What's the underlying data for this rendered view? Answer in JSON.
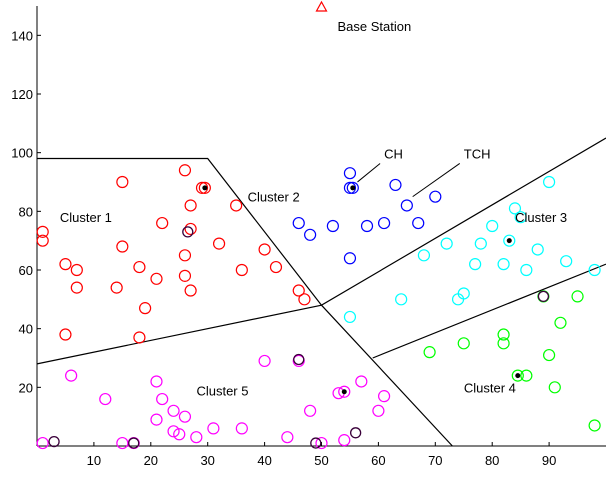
{
  "chart_data": {
    "type": "scatter",
    "title": "",
    "xlabel": "",
    "ylabel": "",
    "xlim": [
      0,
      100
    ],
    "ylim": [
      0,
      150
    ],
    "x_ticks": [
      10,
      20,
      30,
      40,
      50,
      60,
      70,
      80,
      90
    ],
    "y_ticks": [
      20,
      40,
      60,
      80,
      100,
      120,
      140
    ],
    "grid": false,
    "base_station": {
      "x": 50,
      "y": 150,
      "color": "#ff0000",
      "label": "Base Station"
    },
    "annotations": [
      {
        "text": "CH",
        "from": [
          61,
          97
        ],
        "to": [
          55.8,
          89
        ]
      },
      {
        "text": "TCH",
        "from": [
          75,
          97
        ],
        "to": [
          65.5,
          84
        ]
      }
    ],
    "region_labels": [
      {
        "text": "Cluster 1",
        "x": 10,
        "y": 78
      },
      {
        "text": "Cluster 2",
        "x": 43,
        "y": 85
      },
      {
        "text": "Cluster 3",
        "x": 90,
        "y": 78
      },
      {
        "text": "Cluster 4",
        "x": 81,
        "y": 20
      },
      {
        "text": "Cluster 5",
        "x": 34,
        "y": 19
      }
    ],
    "boundaries": [
      [
        [
          0,
          98
        ],
        [
          30,
          98
        ],
        [
          50,
          48
        ],
        [
          73,
          0
        ]
      ],
      [
        [
          0,
          28
        ],
        [
          50,
          48
        ],
        [
          100,
          105
        ]
      ],
      [
        [
          59,
          30
        ],
        [
          100,
          62
        ]
      ]
    ],
    "series": [
      {
        "color": "#ff0000",
        "points": [
          [
            1,
            73
          ],
          [
            1,
            70
          ],
          [
            5,
            62
          ],
          [
            7,
            60
          ],
          [
            7,
            54
          ],
          [
            5,
            38
          ],
          [
            15,
            90
          ],
          [
            15,
            68
          ],
          [
            14,
            54
          ],
          [
            18,
            61
          ],
          [
            21,
            57
          ],
          [
            19,
            47
          ],
          [
            18,
            37
          ],
          [
            22,
            76
          ],
          [
            26,
            94
          ],
          [
            27,
            82
          ],
          [
            29,
            88
          ],
          [
            27,
            74
          ],
          [
            26,
            65
          ],
          [
            26,
            58
          ],
          [
            27,
            53
          ],
          [
            32,
            69
          ],
          [
            35,
            82
          ],
          [
            36,
            60
          ],
          [
            40,
            67
          ],
          [
            42,
            61
          ],
          [
            46,
            53
          ],
          [
            47,
            50
          ]
        ],
        "cluster_head": [
          29.5,
          88
        ]
      },
      {
        "color": "#0000ff",
        "points": [
          [
            46,
            76
          ],
          [
            48,
            72
          ],
          [
            52,
            75
          ],
          [
            55,
            93
          ],
          [
            55,
            88
          ],
          [
            58,
            75
          ],
          [
            61,
            76
          ],
          [
            63,
            89
          ],
          [
            65,
            82
          ],
          [
            67,
            76
          ],
          [
            70,
            85
          ],
          [
            55,
            64
          ]
        ],
        "cluster_head": [
          55.5,
          88
        ]
      },
      {
        "color": "#00ffff",
        "points": [
          [
            55,
            44
          ],
          [
            64,
            50
          ],
          [
            68,
            65
          ],
          [
            72,
            69
          ],
          [
            74,
            50
          ],
          [
            75,
            52
          ],
          [
            77,
            62
          ],
          [
            78,
            69
          ],
          [
            80,
            75
          ],
          [
            82,
            62
          ],
          [
            84,
            81
          ],
          [
            85,
            78
          ],
          [
            86,
            60
          ],
          [
            88,
            67
          ],
          [
            90,
            90
          ],
          [
            93,
            63
          ],
          [
            98,
            60
          ]
        ],
        "cluster_head": [
          83,
          70
        ]
      },
      {
        "color": "#00ff00",
        "points": [
          [
            69,
            32
          ],
          [
            75,
            35
          ],
          [
            82,
            38
          ],
          [
            82,
            35
          ],
          [
            86,
            24
          ],
          [
            89,
            51
          ],
          [
            92,
            42
          ],
          [
            90,
            31
          ],
          [
            91,
            20
          ],
          [
            95,
            51
          ],
          [
            98,
            7
          ]
        ],
        "cluster_head": [
          84.5,
          24
        ]
      },
      {
        "color": "#ff00ff",
        "points": [
          [
            1,
            1
          ],
          [
            6,
            24
          ],
          [
            12,
            16
          ],
          [
            15,
            1
          ],
          [
            17,
            1
          ],
          [
            21,
            22
          ],
          [
            22,
            16
          ],
          [
            21,
            9
          ],
          [
            24,
            12
          ],
          [
            24,
            5
          ],
          [
            25,
            4
          ],
          [
            26,
            10
          ],
          [
            28,
            3
          ],
          [
            31,
            6
          ],
          [
            36,
            6
          ],
          [
            40,
            29
          ],
          [
            44,
            3
          ],
          [
            46,
            29
          ],
          [
            48,
            12
          ],
          [
            50,
            1
          ],
          [
            54,
            2
          ],
          [
            57,
            22
          ],
          [
            60,
            12
          ],
          [
            61,
            17
          ],
          [
            53,
            18
          ]
        ],
        "cluster_head": [
          54,
          18.5
        ]
      }
    ],
    "dark_points": [
      [
        3,
        1.5
      ],
      [
        17,
        1
      ],
      [
        26.5,
        73
      ],
      [
        46,
        29.5
      ],
      [
        49,
        1
      ],
      [
        56,
        4.5
      ],
      [
        89,
        51
      ]
    ]
  }
}
